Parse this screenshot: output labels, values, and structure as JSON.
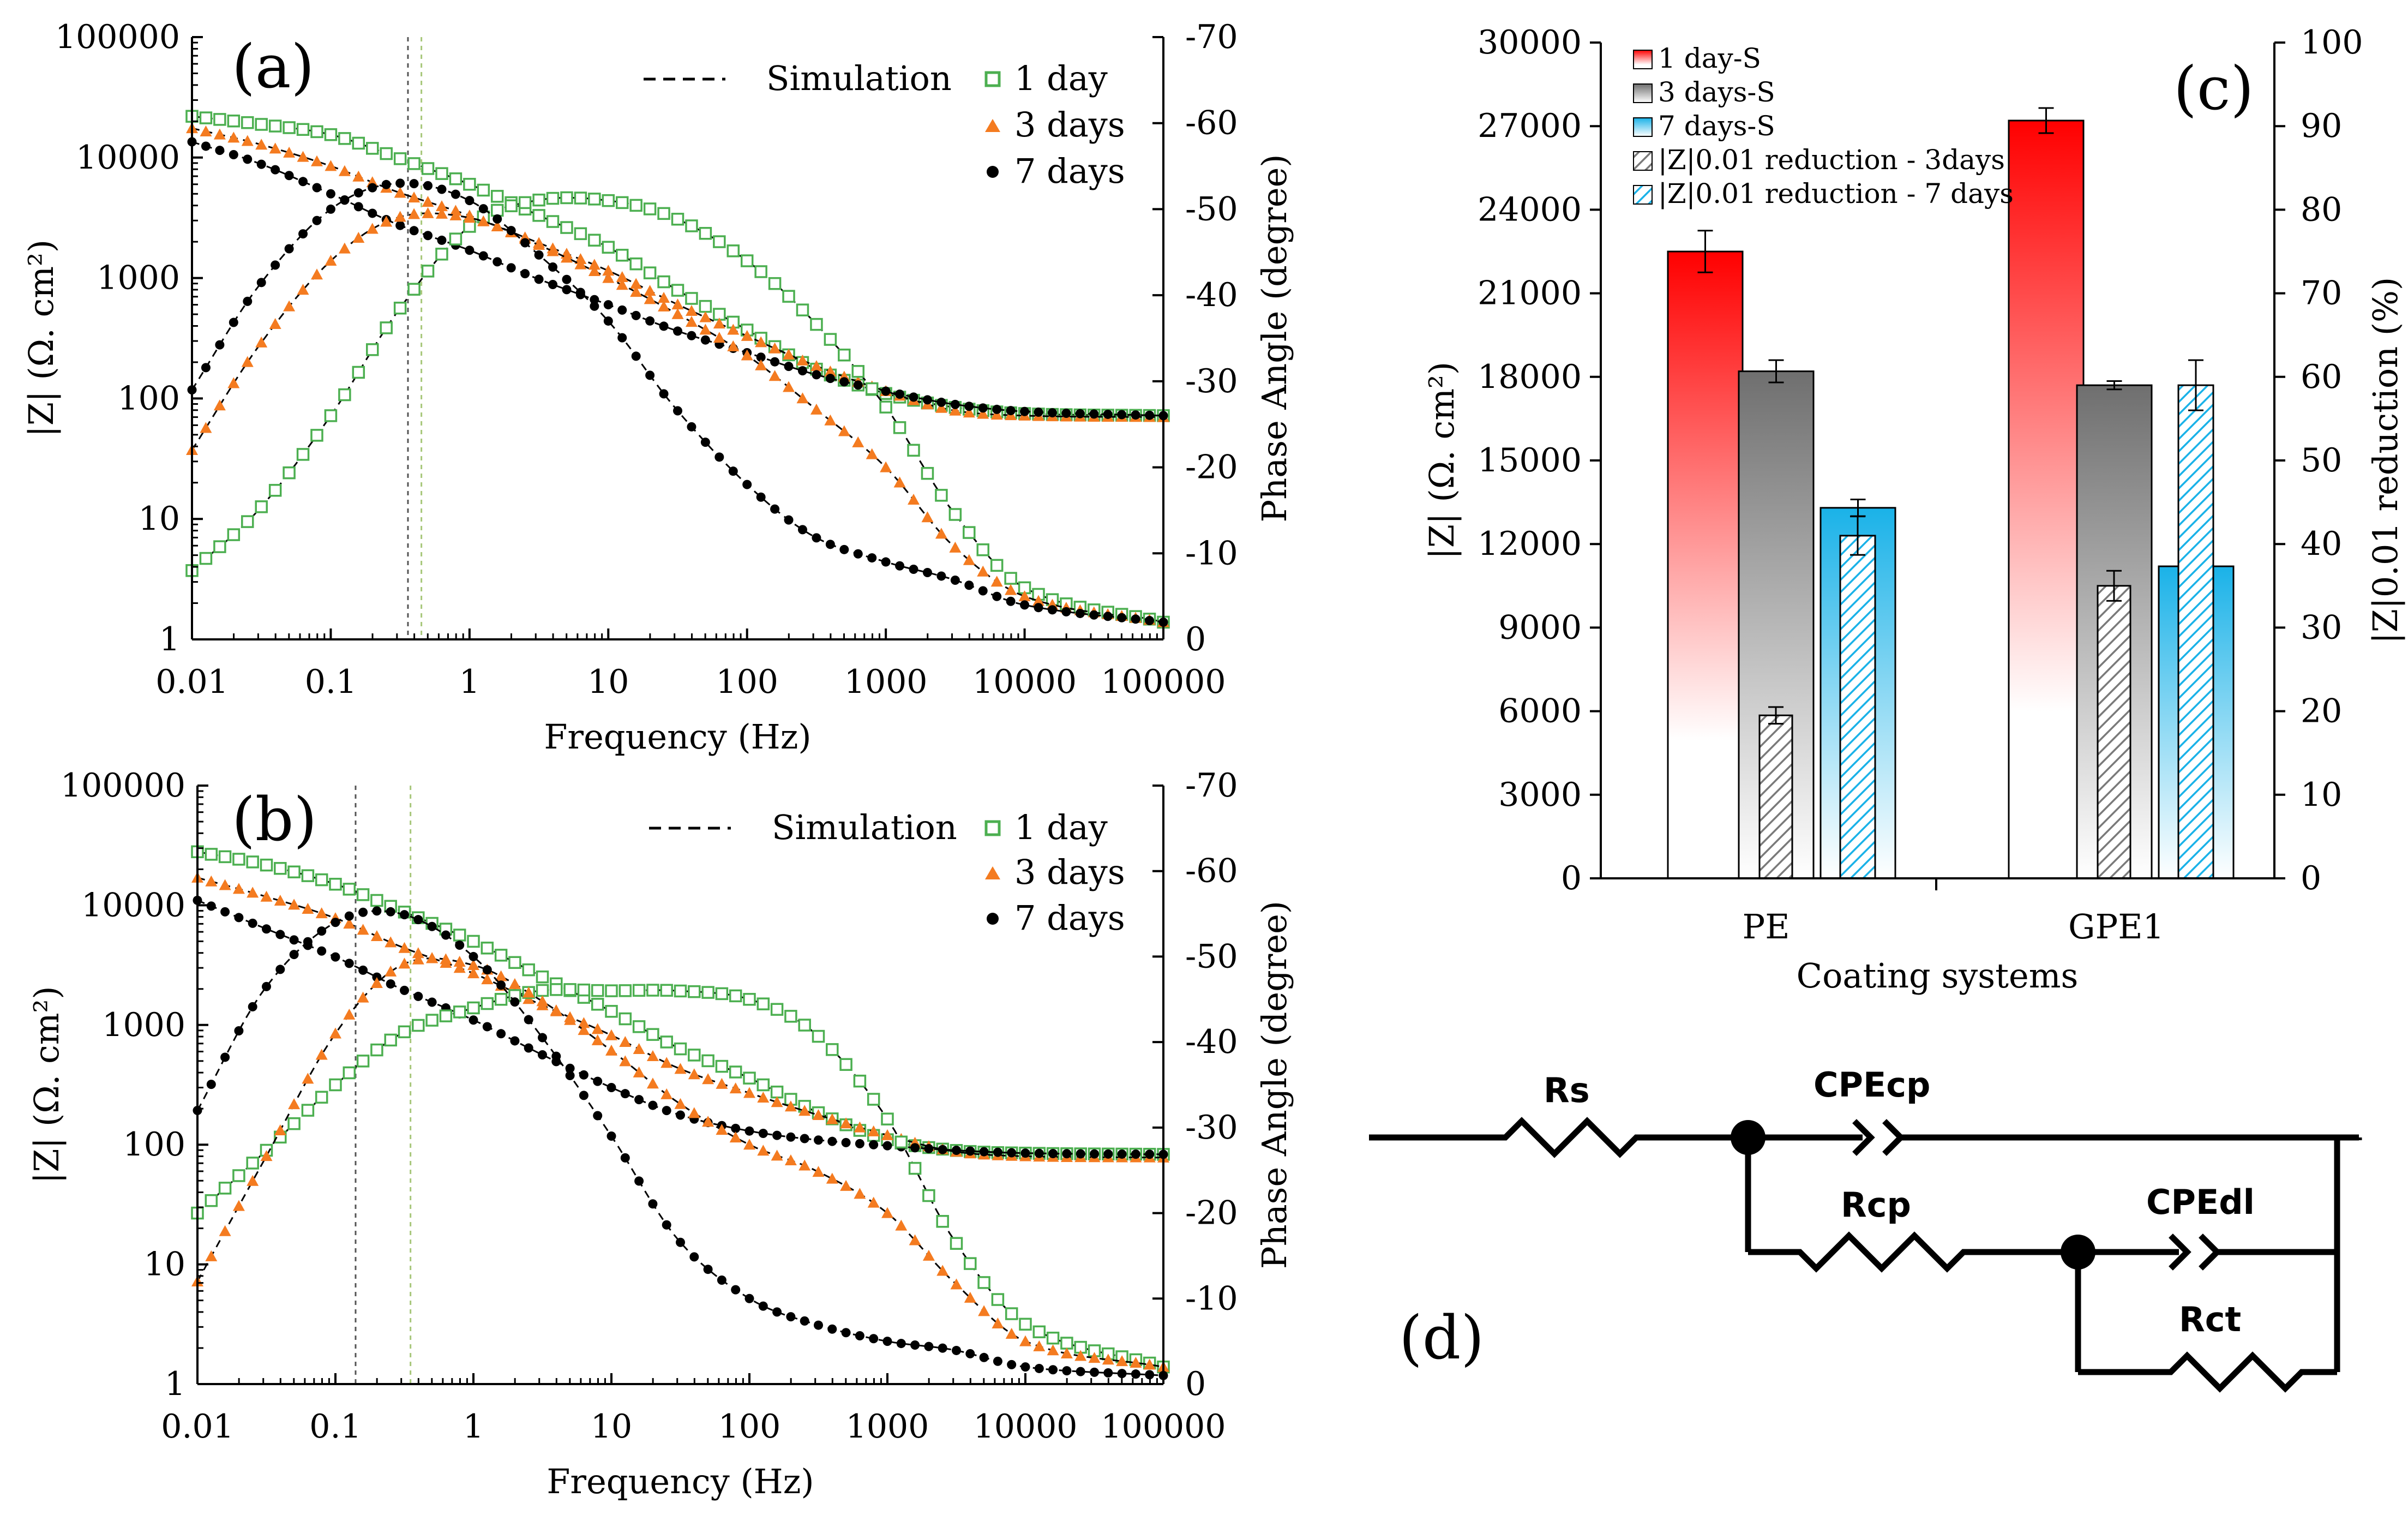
{
  "colors": {
    "day1": "#4caf50",
    "day3": "#f47b20",
    "day7": "#000000",
    "bar_red": "#ff0000",
    "bar_gray": "#7a7a7a",
    "bar_blue": "#1ab2e8",
    "hatch_gray": "#7a7a7a",
    "hatch_blue": "#1ab2e8"
  },
  "panel_a": {
    "tag": "(a)",
    "legend": {
      "simulation": "Simulation",
      "day1": "1 day",
      "day3": "3 days",
      "day7": "7 days"
    },
    "xlabel": "Frequency (Hz)",
    "ylabel": "|Z| (Ω. cm²)",
    "y2label": "Phase Angle (degree)",
    "xticks": [
      "0.01",
      "0.1",
      "1",
      "10",
      "100",
      "1000",
      "10000",
      "100000"
    ],
    "yticks": [
      "1",
      "10",
      "100",
      "1000",
      "10000",
      "100000"
    ],
    "y2ticks": [
      "0",
      "-10",
      "-20",
      "-30",
      "-40",
      "-50",
      "-60",
      "-70"
    ]
  },
  "panel_b": {
    "tag": "(b)",
    "legend": {
      "simulation": "Simulation",
      "day1": "1 day",
      "day3": "3 days",
      "day7": "7 days"
    },
    "xlabel": "Frequency (Hz)",
    "ylabel": "|Z| (Ω. cm²)",
    "y2label": "Phase Angle (degree)",
    "xticks": [
      "0.01",
      "0.1",
      "1",
      "10",
      "100",
      "1000",
      "10000",
      "100000"
    ],
    "yticks": [
      "1",
      "10",
      "100",
      "1000",
      "10000",
      "100000"
    ],
    "y2ticks": [
      "0",
      "-10",
      "-20",
      "-30",
      "-40",
      "-50",
      "-60",
      "-70"
    ]
  },
  "panel_c": {
    "tag": "(c)",
    "xlabel": "Coating systems",
    "ylabel": "|Z| (Ω. cm²)",
    "y2label": "|Z|0.01 reduction (%)",
    "yticks": [
      "0",
      "3000",
      "6000",
      "9000",
      "12000",
      "15000",
      "18000",
      "21000",
      "24000",
      "27000",
      "30000"
    ],
    "y2ticks": [
      "0",
      "10",
      "20",
      "30",
      "40",
      "50",
      "60",
      "70",
      "80",
      "90",
      "100"
    ],
    "legend": {
      "s1": "1 day-S",
      "s3": "3 days-S",
      "s7": "7 days-S",
      "r3": "|Z|0.01 reduction - 3days",
      "r7": "|Z|0.01 reduction - 7 days"
    }
  },
  "panel_d": {
    "tag": "(d)",
    "labels": {
      "rs": "Rs",
      "cpecp": "CPEcp",
      "rcp": "Rcp",
      "cpedl": "CPEdl",
      "rct": "Rct"
    }
  },
  "chart_data": [
    {
      "id": "a",
      "type": "line",
      "xscale": "log",
      "xlim": [
        0.01,
        100000
      ],
      "yscale": "log",
      "ylim": [
        1,
        100000
      ],
      "y2lim": [
        0,
        -70
      ],
      "series": [
        {
          "name": "1 day |Z|",
          "marker": "square",
          "axis": "y",
          "points": [
            [
              0.01,
              22000
            ],
            [
              0.03,
              19000
            ],
            [
              0.1,
              15500
            ],
            [
              0.3,
              10000
            ],
            [
              1,
              6000
            ],
            [
              3,
              3400
            ],
            [
              10,
              1800
            ],
            [
              30,
              820
            ],
            [
              100,
              370
            ],
            [
              300,
              180
            ],
            [
              1000,
              110
            ],
            [
              3000,
              85
            ],
            [
              10000,
              75
            ],
            [
              100000,
              72
            ]
          ]
        },
        {
          "name": "3 days |Z|",
          "marker": "triangle",
          "axis": "y",
          "points": [
            [
              0.01,
              17500
            ],
            [
              0.03,
              13000
            ],
            [
              0.1,
              8500
            ],
            [
              0.3,
              5200
            ],
            [
              1,
              3300
            ],
            [
              3,
              2000
            ],
            [
              10,
              1150
            ],
            [
              30,
              620
            ],
            [
              100,
              330
            ],
            [
              300,
              190
            ],
            [
              1000,
              115
            ],
            [
              3000,
              80
            ],
            [
              10000,
              72
            ],
            [
              100000,
              70
            ]
          ]
        },
        {
          "name": "7 days |Z|",
          "marker": "circle",
          "axis": "y",
          "points": [
            [
              0.01,
              13500
            ],
            [
              0.03,
              9000
            ],
            [
              0.1,
              5000
            ],
            [
              0.3,
              2800
            ],
            [
              1,
              1700
            ],
            [
              3,
              1000
            ],
            [
              10,
              600
            ],
            [
              30,
              370
            ],
            [
              100,
              240
            ],
            [
              300,
              160
            ],
            [
              1000,
              115
            ],
            [
              3000,
              90
            ],
            [
              10000,
              78
            ],
            [
              100000,
              72
            ]
          ]
        },
        {
          "name": "1 day phase",
          "marker": "square",
          "axis": "y2",
          "points": [
            [
              0.01,
              -8
            ],
            [
              0.03,
              -15
            ],
            [
              0.1,
              -26
            ],
            [
              0.3,
              -38
            ],
            [
              1,
              -48
            ],
            [
              3,
              -51
            ],
            [
              10,
              -51
            ],
            [
              30,
              -49
            ],
            [
              100,
              -44
            ],
            [
              300,
              -37
            ],
            [
              1000,
              -27
            ],
            [
              3000,
              -15
            ],
            [
              10000,
              -6
            ],
            [
              100000,
              -2
            ]
          ]
        },
        {
          "name": "3 days phase",
          "marker": "triangle",
          "axis": "y2",
          "points": [
            [
              0.01,
              -22
            ],
            [
              0.03,
              -34
            ],
            [
              0.1,
              -44
            ],
            [
              0.3,
              -49
            ],
            [
              1,
              -49
            ],
            [
              3,
              -46
            ],
            [
              10,
              -42
            ],
            [
              30,
              -38
            ],
            [
              100,
              -33
            ],
            [
              300,
              -27
            ],
            [
              1000,
              -20
            ],
            [
              3000,
              -11
            ],
            [
              10000,
              -5
            ],
            [
              100000,
              -2
            ]
          ]
        },
        {
          "name": "7 days phase",
          "marker": "circle",
          "axis": "y2",
          "points": [
            [
              0.01,
              -29
            ],
            [
              0.03,
              -41
            ],
            [
              0.1,
              -50
            ],
            [
              0.3,
              -53
            ],
            [
              1,
              -51
            ],
            [
              3,
              -45
            ],
            [
              10,
              -37
            ],
            [
              30,
              -27
            ],
            [
              100,
              -18
            ],
            [
              300,
              -12
            ],
            [
              1000,
              -9
            ],
            [
              3000,
              -7
            ],
            [
              10000,
              -4
            ],
            [
              100000,
              -2
            ]
          ]
        }
      ]
    },
    {
      "id": "b",
      "type": "line",
      "xscale": "log",
      "xlim": [
        0.01,
        100000
      ],
      "yscale": "log",
      "ylim": [
        1,
        100000
      ],
      "y2lim": [
        0,
        -70
      ],
      "series": [
        {
          "name": "1 day |Z|",
          "marker": "square",
          "axis": "y",
          "points": [
            [
              0.01,
              28000
            ],
            [
              0.03,
              22000
            ],
            [
              0.1,
              15000
            ],
            [
              0.3,
              9000
            ],
            [
              1,
              5000
            ],
            [
              3,
              2600
            ],
            [
              10,
              1300
            ],
            [
              30,
              650
            ],
            [
              100,
              360
            ],
            [
              300,
              190
            ],
            [
              1000,
              110
            ],
            [
              3000,
              90
            ],
            [
              10000,
              85
            ],
            [
              100000,
              83
            ]
          ]
        },
        {
          "name": "3 days |Z|",
          "marker": "triangle",
          "axis": "y",
          "points": [
            [
              0.01,
              17000
            ],
            [
              0.03,
              12000
            ],
            [
              0.1,
              7800
            ],
            [
              0.3,
              4500
            ],
            [
              1,
              2700
            ],
            [
              3,
              1500
            ],
            [
              10,
              820
            ],
            [
              30,
              440
            ],
            [
              100,
              270
            ],
            [
              300,
              180
            ],
            [
              1000,
              120
            ],
            [
              3000,
              88
            ],
            [
              10000,
              80
            ],
            [
              100000,
              78
            ]
          ]
        },
        {
          "name": "7 days |Z|",
          "marker": "circle",
          "axis": "y",
          "points": [
            [
              0.01,
              11000
            ],
            [
              0.03,
              6500
            ],
            [
              0.1,
              3700
            ],
            [
              0.3,
              2000
            ],
            [
              1,
              1100
            ],
            [
              3,
              580
            ],
            [
              10,
              300
            ],
            [
              30,
              180
            ],
            [
              100,
              130
            ],
            [
              300,
              110
            ],
            [
              1000,
              98
            ],
            [
              3000,
              90
            ],
            [
              10000,
              85
            ],
            [
              100000,
              83
            ]
          ]
        },
        {
          "name": "1 day phase",
          "marker": "square",
          "axis": "y2",
          "points": [
            [
              0.01,
              -20
            ],
            [
              0.03,
              -27
            ],
            [
              0.1,
              -35
            ],
            [
              0.3,
              -41
            ],
            [
              1,
              -44
            ],
            [
              3,
              -46
            ],
            [
              10,
              -46
            ],
            [
              30,
              -46
            ],
            [
              100,
              -45
            ],
            [
              300,
              -41
            ],
            [
              1000,
              -31
            ],
            [
              3000,
              -17
            ],
            [
              10000,
              -7
            ],
            [
              100000,
              -2
            ]
          ]
        },
        {
          "name": "3 days phase",
          "marker": "triangle",
          "axis": "y2",
          "points": [
            [
              0.01,
              -12
            ],
            [
              0.03,
              -26
            ],
            [
              0.1,
              -41
            ],
            [
              0.3,
              -49
            ],
            [
              1,
              -49
            ],
            [
              3,
              -45
            ],
            [
              10,
              -39
            ],
            [
              30,
              -33
            ],
            [
              100,
              -28
            ],
            [
              300,
              -25
            ],
            [
              1000,
              -20
            ],
            [
              3000,
              -12
            ],
            [
              10000,
              -5
            ],
            [
              100000,
              -2
            ]
          ]
        },
        {
          "name": "7 days phase",
          "marker": "circle",
          "axis": "y2",
          "points": [
            [
              0.01,
              -32
            ],
            [
              0.03,
              -46
            ],
            [
              0.1,
              -54
            ],
            [
              0.3,
              -55
            ],
            [
              1,
              -50
            ],
            [
              3,
              -41
            ],
            [
              10,
              -29
            ],
            [
              30,
              -17
            ],
            [
              100,
              -10
            ],
            [
              300,
              -7
            ],
            [
              1000,
              -5
            ],
            [
              3000,
              -4
            ],
            [
              10000,
              -2
            ],
            [
              100000,
              -1
            ]
          ]
        }
      ]
    },
    {
      "id": "c",
      "type": "bar",
      "categories": [
        "PE",
        "GPE1"
      ],
      "ylim": [
        0,
        30000
      ],
      "y2lim": [
        0,
        100
      ],
      "series": [
        {
          "name": "1 day-S",
          "axis": "y",
          "values": [
            22500,
            27200
          ],
          "errors": [
            750,
            450
          ]
        },
        {
          "name": "3 days-S",
          "axis": "y",
          "values": [
            18200,
            17700
          ],
          "errors": [
            400,
            150
          ]
        },
        {
          "name": "|Z|0.01 reduction - 3days",
          "axis": "y2",
          "values": [
            19.5,
            35
          ],
          "errors": [
            1,
            1.8
          ]
        },
        {
          "name": "7 days-S",
          "axis": "y",
          "values": [
            13300,
            11200
          ],
          "errors": [
            300,
            0
          ]
        },
        {
          "name": "|Z|0.01 reduction - 7 days",
          "axis": "y2",
          "values": [
            41,
            59
          ],
          "errors": [
            2.3,
            3
          ]
        }
      ]
    }
  ]
}
